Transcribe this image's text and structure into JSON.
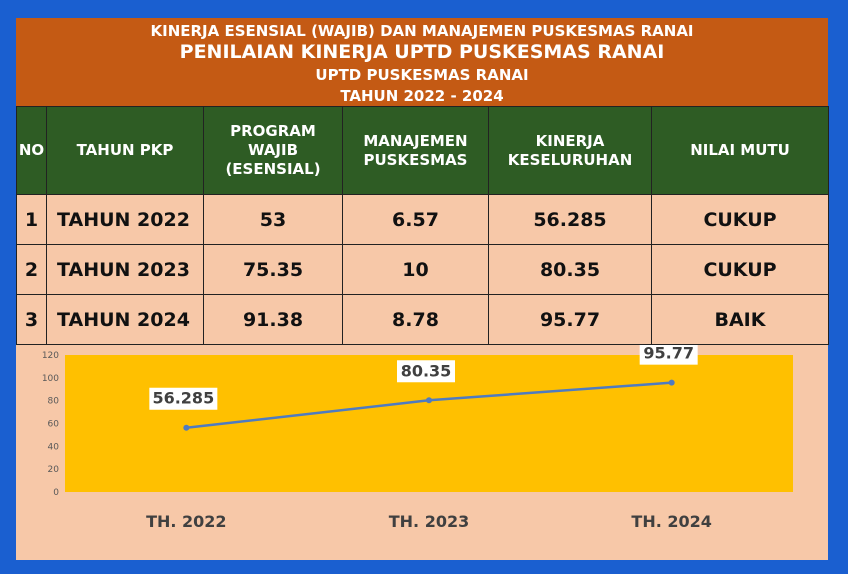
{
  "header": {
    "line1": "KINERJA ESENSIAL (WAJIB) DAN MANAJEMEN PUSKESMAS RANAI",
    "line2": "PENILAIAN KINERJA UPTD PUSKESMAS RANAI",
    "line3": "UPTD PUSKESMAS RANAI",
    "line4": "TAHUN 2022 - 2024"
  },
  "table": {
    "headers": [
      "NO",
      "TAHUN PKP",
      "PROGRAM WAJIB (ESENSIAL)",
      "MANAJEMEN PUSKESMAS",
      "KINERJA KESELURUHAN",
      "NILAI MUTU"
    ],
    "rows": [
      [
        "1",
        "TAHUN 2022",
        "53",
        "6.57",
        "56.285",
        "CUKUP"
      ],
      [
        "2",
        "TAHUN 2023",
        "75.35",
        "10",
        "80.35",
        "CUKUP"
      ],
      [
        "3",
        "TAHUN 2024",
        "91.38",
        "8.78",
        "95.77",
        "BAIK"
      ]
    ]
  },
  "colors": {
    "header_bg": "#c45a14",
    "table_header_bg": "#2e5c24",
    "row_bg": "#f7c8a8",
    "plot_bg": "#ffc000",
    "line": "#4f7bc0",
    "frame": "#1a5fd0"
  },
  "chart_data": {
    "type": "line",
    "categories": [
      "TH. 2022",
      "TH. 2023",
      "TH. 2024"
    ],
    "values": [
      56.285,
      80.35,
      95.77
    ],
    "value_labels": [
      "56.285",
      "80.35",
      "95.77"
    ],
    "ylim": [
      0,
      120
    ],
    "yticks": [
      0,
      20,
      40,
      60,
      80,
      100,
      120
    ],
    "title": "",
    "xlabel": "",
    "ylabel": "",
    "grid": false,
    "legend": "none"
  }
}
